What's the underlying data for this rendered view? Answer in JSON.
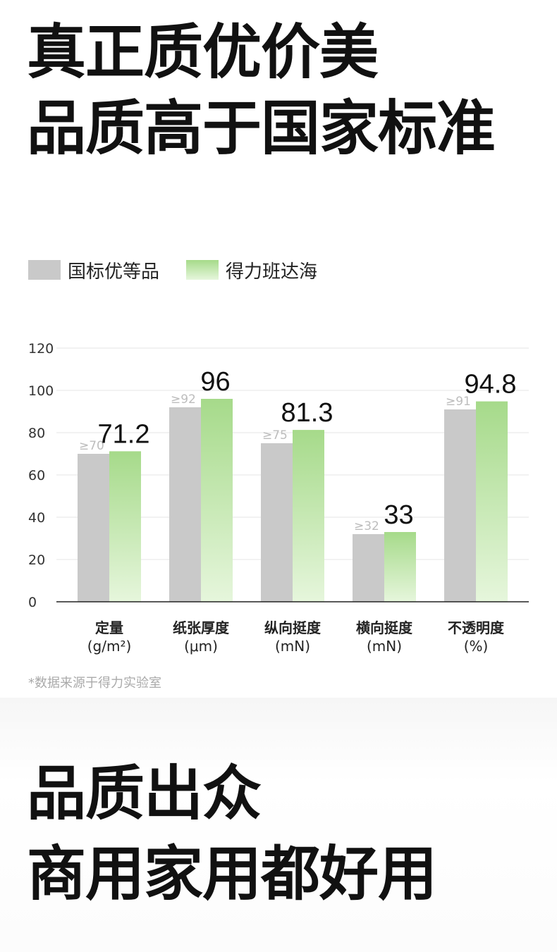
{
  "headline": {
    "line1": "真正质优价美",
    "line2": "品质高于国家标准"
  },
  "legend": [
    {
      "label": "国标优等品",
      "color": "#c9c9c9"
    },
    {
      "label": "得力班达海",
      "color": "#a6da8a"
    }
  ],
  "chart_data": {
    "type": "bar",
    "categories": [
      "定量",
      "纸张厚度",
      "纵向挺度",
      "横向挺度",
      "不透明度"
    ],
    "category_units": [
      "(g/m²)",
      "(μm)",
      "(mN)",
      "(mN)",
      "(%)"
    ],
    "series": [
      {
        "name": "国标优等品",
        "values": [
          70,
          92,
          75,
          32,
          91
        ],
        "labels": [
          "≥70",
          "≥92",
          "≥75",
          "≥32",
          "≥91"
        ],
        "color": "#c9c9c9"
      },
      {
        "name": "得力班达海",
        "values": [
          71.2,
          96,
          81.3,
          33,
          94.8
        ],
        "labels": [
          "71.2",
          "96",
          "81.3",
          "33",
          "94.8"
        ],
        "color": "#a6da8a"
      }
    ],
    "yticks": [
      0,
      20,
      40,
      60,
      80,
      100,
      120
    ],
    "ylim": [
      0,
      120
    ],
    "grid": true,
    "legend_position": "top-left"
  },
  "footnote": "*数据来源于得力实验室",
  "bottom": {
    "line1": "品质出众",
    "line2": "商用家用都好用"
  }
}
